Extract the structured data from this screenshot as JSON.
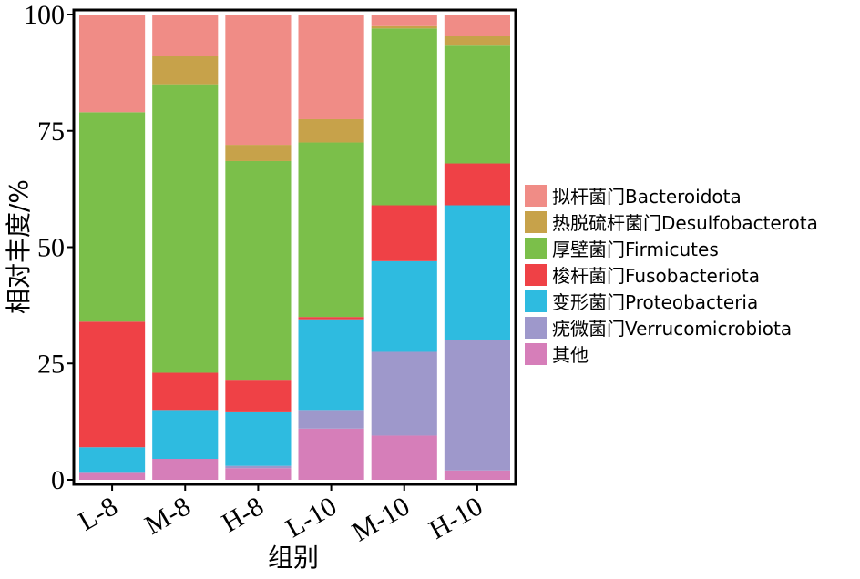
{
  "chart_data": {
    "type": "bar",
    "stacked": true,
    "xlabel": "组别",
    "ylabel": "相对丰度/%",
    "ylim": [
      0,
      100
    ],
    "yticks": [
      0,
      25,
      50,
      75,
      100
    ],
    "categories": [
      "L-8",
      "M-8",
      "H-8",
      "L-10",
      "M-10",
      "H-10"
    ],
    "legend_position": "right",
    "series": [
      {
        "name": "其他",
        "color": "#D67EB9",
        "values": [
          1.5,
          4.5,
          2.5,
          11,
          9.5,
          2
        ]
      },
      {
        "name": "疣微菌门Verrucomicrobiota",
        "color": "#9E98CB",
        "values": [
          0,
          0,
          0.5,
          4,
          18,
          28
        ]
      },
      {
        "name": "变形菌门Proteobacteria",
        "color": "#2EBBE0",
        "values": [
          5.5,
          10.5,
          11.5,
          19.5,
          19.5,
          29
        ]
      },
      {
        "name": "梭杆菌门Fusobacteriota",
        "color": "#EF4146",
        "values": [
          27,
          8,
          7,
          0.5,
          12,
          9
        ]
      },
      {
        "name": "厚壁菌门Firmicutes",
        "color": "#7BBF4A",
        "values": [
          45,
          62,
          47,
          37.5,
          38,
          25.5
        ]
      },
      {
        "name": "热脱硫杆菌门Desulfobacterota",
        "color": "#C7A24A",
        "values": [
          0,
          6,
          3.5,
          5,
          0.5,
          2
        ]
      },
      {
        "name": "拟杆菌门Bacteroidota",
        "color": "#F08C86",
        "values": [
          21,
          9,
          28,
          22.5,
          2.5,
          4.5
        ]
      }
    ],
    "legend_order": [
      "拟杆菌门Bacteroidota",
      "热脱硫杆菌门Desulfobacterota",
      "厚壁菌门Firmicutes",
      "梭杆菌门Fusobacteriota",
      "变形菌门Proteobacteria",
      "疣微菌门Verrucomicrobiota",
      "其他"
    ]
  }
}
